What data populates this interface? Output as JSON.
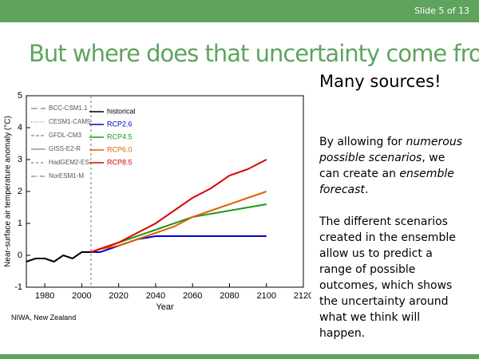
{
  "slide_number": "Slide 5 of 13",
  "title": "But where does that uncertainty come from?",
  "subtitle": "Many sources!",
  "paragraphs": [
    [
      {
        "text": "By allowing for "
      },
      {
        "text": "numerous possible scenarios",
        "italic": true
      },
      {
        "text": ", we can create an "
      },
      {
        "text": "ensemble forecast",
        "italic": true
      },
      {
        "text": "."
      }
    ],
    [
      {
        "text": "The different scenarios created in the ensemble allow us to predict a range of possible outcomes, which shows the uncertainty around what we think will happen."
      }
    ]
  ],
  "credit": "NIWA, New Zealand",
  "chart_data": {
    "type": "line",
    "x_label": "Year",
    "y_label": "Near-surface air temperature anomaly (°C)",
    "xlim": [
      1970,
      2120
    ],
    "xticks": [
      1980,
      2000,
      2020,
      2040,
      2060,
      2080,
      2100,
      2120
    ],
    "ylim": [
      -1,
      5
    ],
    "yticks": [
      -1,
      0,
      1,
      2,
      3,
      4,
      5
    ],
    "divider_x": 2005,
    "model_legend": [
      {
        "name": "BCC-CSM1.1",
        "dash": "8 4"
      },
      {
        "name": "CESM1-CAM5",
        "dash": "1 2"
      },
      {
        "name": "GFDL-CM3",
        "dash": "4 2"
      },
      {
        "name": "GISS-E2-R",
        "dash": "none"
      },
      {
        "name": "HadGEM2-ES",
        "dash": "3 3"
      },
      {
        "name": "NorESM1-M",
        "dash": "6 2 1 2"
      }
    ],
    "series": [
      {
        "name": "historical",
        "color": "#000000",
        "x": [
          1970,
          1975,
          1980,
          1985,
          1990,
          1995,
          2000,
          2005
        ],
        "values": [
          -0.2,
          -0.1,
          -0.1,
          -0.2,
          0,
          -0.1,
          0.1,
          0.1
        ]
      },
      {
        "name": "RCP2.6",
        "color": "#0000cc",
        "x": [
          2005,
          2010,
          2020,
          2030,
          2040,
          2050,
          2060,
          2070,
          2080,
          2090,
          2100
        ],
        "values": [
          0.1,
          0.1,
          0.3,
          0.5,
          0.6,
          0.6,
          0.6,
          0.6,
          0.6,
          0.6,
          0.6
        ]
      },
      {
        "name": "RCP4.5",
        "color": "#1a9a1a",
        "x": [
          2005,
          2010,
          2020,
          2030,
          2040,
          2050,
          2060,
          2070,
          2080,
          2090,
          2100
        ],
        "values": [
          0.1,
          0.2,
          0.4,
          0.6,
          0.8,
          1.0,
          1.2,
          1.3,
          1.4,
          1.5,
          1.6
        ]
      },
      {
        "name": "RCP6.0",
        "color": "#e06000",
        "x": [
          2005,
          2010,
          2020,
          2030,
          2040,
          2050,
          2060,
          2070,
          2080,
          2090,
          2100
        ],
        "values": [
          0.1,
          0.2,
          0.3,
          0.5,
          0.7,
          0.9,
          1.2,
          1.4,
          1.6,
          1.8,
          2.0
        ]
      },
      {
        "name": "RCP8.5",
        "color": "#dd0000",
        "x": [
          2005,
          2010,
          2020,
          2030,
          2040,
          2050,
          2060,
          2070,
          2080,
          2090,
          2100
        ],
        "values": [
          0.1,
          0.2,
          0.4,
          0.7,
          1.0,
          1.4,
          1.8,
          2.1,
          2.5,
          2.7,
          3.0
        ]
      }
    ]
  }
}
